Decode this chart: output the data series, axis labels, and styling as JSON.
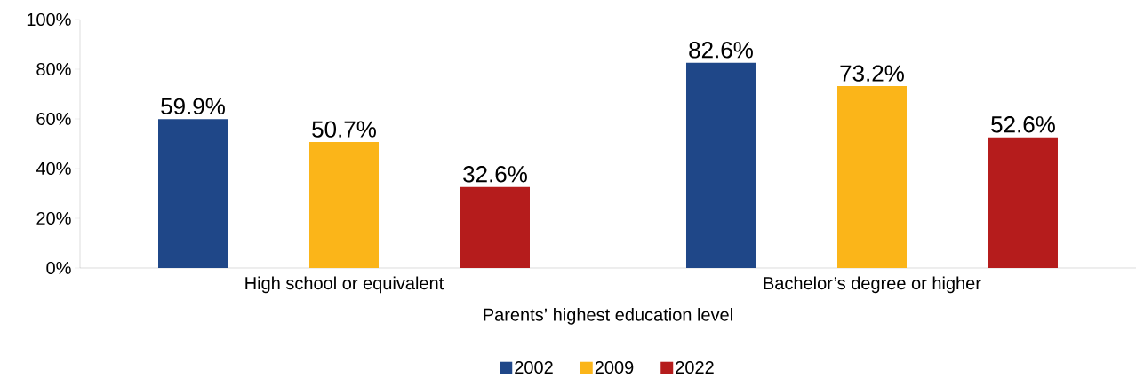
{
  "chart_data": {
    "type": "bar",
    "categories": [
      "High school or equivalent",
      "Bachelor’s degree or higher"
    ],
    "xlabel": "Parents’ highest education level",
    "series": [
      {
        "name": "2002",
        "color": "#1f4788",
        "values": [
          59.9,
          82.6
        ],
        "value_labels": [
          "59.9%",
          "82.6%"
        ]
      },
      {
        "name": "2009",
        "color": "#fbb519",
        "values": [
          50.7,
          73.2
        ],
        "value_labels": [
          "50.7%",
          "73.2%"
        ]
      },
      {
        "name": "2022",
        "color": "#b51c1c",
        "values": [
          32.6,
          52.6
        ],
        "value_labels": [
          "32.6%",
          "52.6%"
        ]
      }
    ],
    "ylim": [
      0,
      100
    ],
    "yticks": [
      {
        "value": 0,
        "label": "0%"
      },
      {
        "value": 20,
        "label": "20%"
      },
      {
        "value": 40,
        "label": "40%"
      },
      {
        "value": 60,
        "label": "60%"
      },
      {
        "value": 80,
        "label": "80%"
      },
      {
        "value": 100,
        "label": "100%"
      }
    ],
    "legend": "bottom"
  }
}
